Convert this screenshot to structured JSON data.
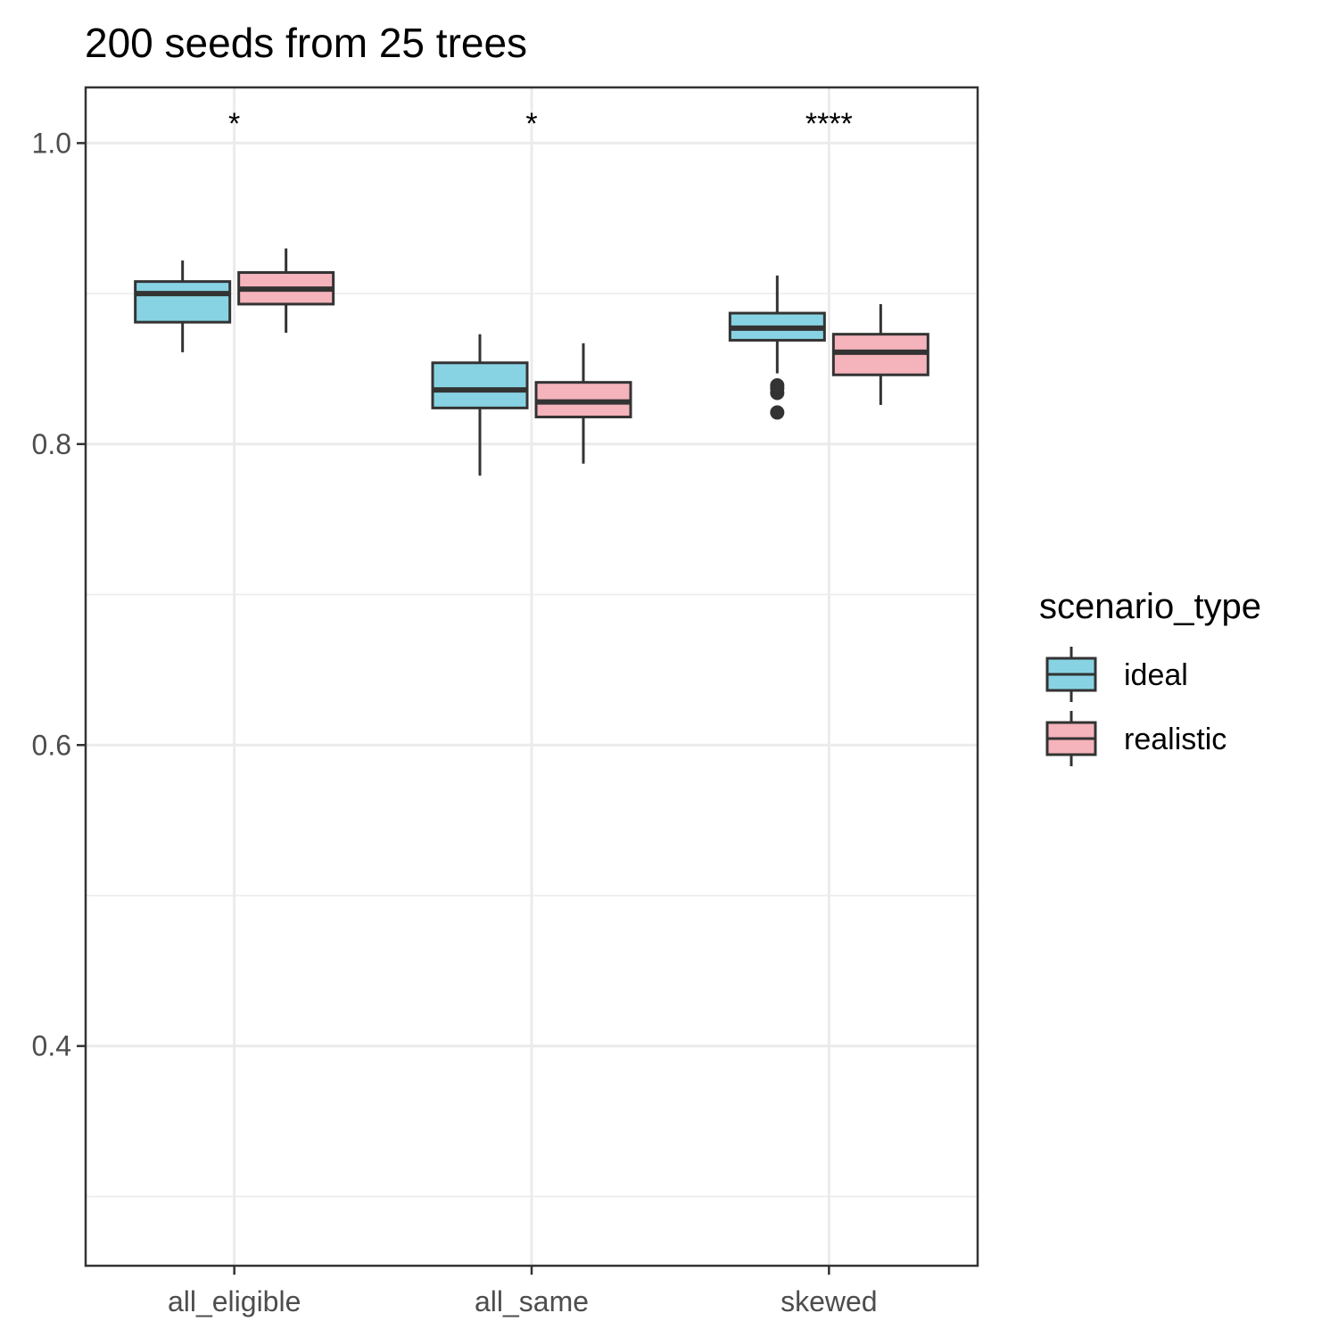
{
  "chart_data": {
    "type": "box",
    "title": "200 seeds from 25 trees",
    "xlabel": "",
    "ylabel": "",
    "categories": [
      "all_eligible",
      "all_same",
      "skewed"
    ],
    "ylim": [
      0.254,
      1.037
    ],
    "y_ticks": [
      0.4,
      0.6,
      0.8,
      1.0
    ],
    "y_tick_labels": [
      "0.4",
      "0.6",
      "0.8",
      "1.0"
    ],
    "y_minor_ticks": [
      0.3,
      0.5,
      0.7,
      0.9
    ],
    "grid": true,
    "legend": {
      "title": "scenario_type",
      "position": "right",
      "entries": [
        "ideal",
        "realistic"
      ]
    },
    "series": [
      {
        "name": "ideal",
        "color": "#87d3e3",
        "boxes": [
          {
            "category": "all_eligible",
            "whisker_low": 0.861,
            "q1": 0.881,
            "median": 0.9,
            "q3": 0.908,
            "whisker_high": 0.922,
            "outliers": []
          },
          {
            "category": "all_same",
            "whisker_low": 0.779,
            "q1": 0.824,
            "median": 0.836,
            "q3": 0.854,
            "whisker_high": 0.873,
            "outliers": []
          },
          {
            "category": "skewed",
            "whisker_low": 0.847,
            "q1": 0.869,
            "median": 0.877,
            "q3": 0.887,
            "whisker_high": 0.912,
            "outliers": [
              0.821,
              0.834,
              0.837,
              0.839
            ]
          }
        ]
      },
      {
        "name": "realistic",
        "color": "#f5b3bb",
        "boxes": [
          {
            "category": "all_eligible",
            "whisker_low": 0.874,
            "q1": 0.893,
            "median": 0.903,
            "q3": 0.914,
            "whisker_high": 0.93,
            "outliers": []
          },
          {
            "category": "all_same",
            "whisker_low": 0.787,
            "q1": 0.818,
            "median": 0.828,
            "q3": 0.841,
            "whisker_high": 0.867,
            "outliers": []
          },
          {
            "category": "skewed",
            "whisker_low": 0.826,
            "q1": 0.846,
            "median": 0.861,
            "q3": 0.873,
            "whisker_high": 0.893,
            "outliers": []
          }
        ]
      }
    ],
    "annotations": [
      {
        "category": "all_eligible",
        "text": "*"
      },
      {
        "category": "all_same",
        "text": "*"
      },
      {
        "category": "skewed",
        "text": "****"
      }
    ]
  }
}
